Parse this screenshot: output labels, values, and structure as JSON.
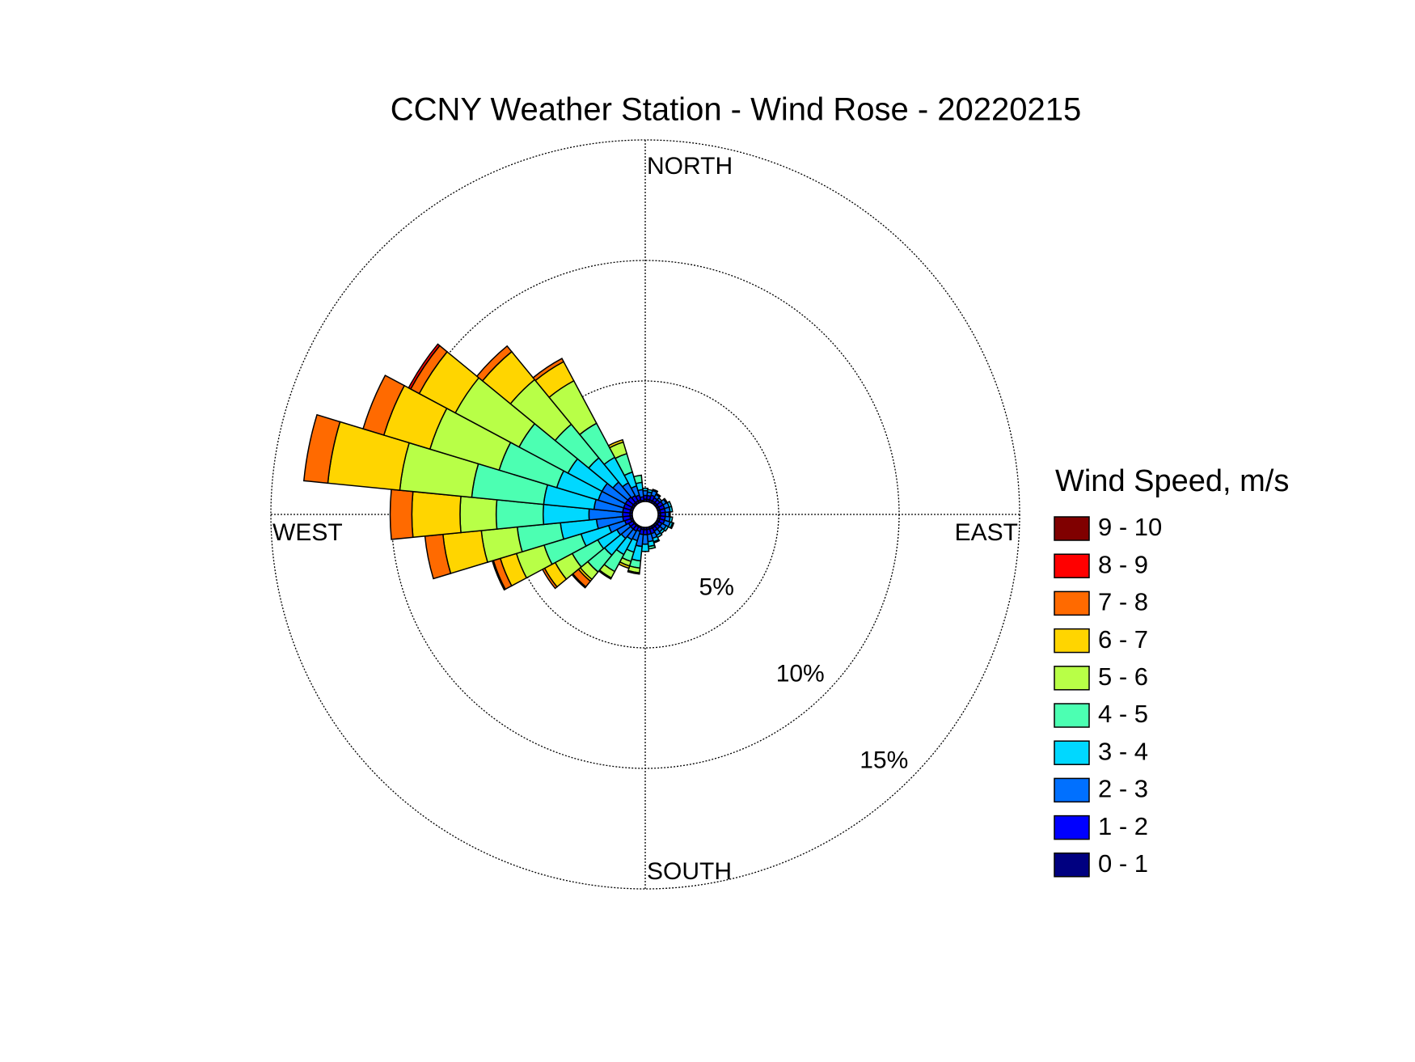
{
  "chart_data": {
    "type": "windrose",
    "title": "CCNY Weather Station - Wind Rose - 20220215",
    "legend_title": "Wind Speed, m/s",
    "direction_labels": [
      "NORTH",
      "EAST",
      "SOUTH",
      "WEST"
    ],
    "directions": [
      0,
      11.25,
      22.5,
      33.75,
      45,
      56.25,
      67.5,
      78.75,
      90,
      101.25,
      112.5,
      123.75,
      135,
      146.25,
      157.5,
      168.75,
      180,
      191.25,
      202.5,
      213.75,
      225,
      236.25,
      247.5,
      258.75,
      270,
      281.25,
      292.5,
      303.75,
      315,
      326.25,
      337.5,
      348.75
    ],
    "rlim": [
      0,
      15
    ],
    "rticks": [
      {
        "value": 5,
        "label": "5%"
      },
      {
        "value": 10,
        "label": "10%"
      },
      {
        "value": 15,
        "label": "15%"
      }
    ],
    "series": [
      {
        "name": "0 - 1",
        "color": "#000080",
        "values": [
          0.1,
          0.1,
          0.1,
          0.1,
          0.1,
          0.1,
          0.1,
          0.1,
          0.1,
          0.1,
          0.1,
          0.1,
          0.1,
          0.1,
          0.1,
          0.1,
          0.1,
          0.1,
          0.05,
          0.05,
          0.05,
          0.05,
          0.1,
          0.1,
          0.1,
          0.1,
          0.1,
          0.1,
          0.1,
          0.1,
          0.1,
          0.05
        ]
      },
      {
        "name": "1 - 2",
        "color": "#0000ff",
        "values": [
          0.15,
          0.15,
          0.2,
          0.15,
          0.15,
          0.2,
          0.2,
          0.2,
          0.2,
          0.2,
          0.2,
          0.15,
          0.15,
          0.15,
          0.2,
          0.2,
          0.2,
          0.2,
          0.15,
          0.2,
          0.2,
          0.2,
          0.25,
          0.3,
          0.3,
          0.3,
          0.3,
          0.3,
          0.3,
          0.25,
          0.2,
          0.15
        ]
      },
      {
        "name": "2 - 3",
        "color": "#0070ff",
        "values": [
          0.2,
          0.15,
          0.2,
          0.15,
          0.1,
          0.15,
          0.2,
          0.2,
          0.15,
          0.2,
          0.25,
          0.2,
          0.15,
          0.2,
          0.2,
          0.3,
          0.4,
          0.5,
          0.4,
          0.4,
          0.5,
          0.55,
          0.7,
          1.1,
          1.4,
          1.2,
          1.1,
          1.1,
          0.8,
          0.6,
          0.4,
          0.3
        ]
      },
      {
        "name": "3 - 4",
        "color": "#00d8ff",
        "values": [
          0.1,
          0.1,
          0.05,
          0.05,
          0,
          0.05,
          0.1,
          0.1,
          0.05,
          0.1,
          0.1,
          0.1,
          0.1,
          0.1,
          0.15,
          0.2,
          0.3,
          0.6,
          0.5,
          0.7,
          0.9,
          0.9,
          1.2,
          1.5,
          1.9,
          2.1,
          1.8,
          1.6,
          1.3,
          1.2,
          0.6,
          0.3
        ]
      },
      {
        "name": "4 - 5",
        "color": "#4cffb2",
        "values": [
          0,
          0,
          0,
          0,
          0,
          0,
          0,
          0,
          0,
          0,
          0.05,
          0,
          0,
          0,
          0.05,
          0.1,
          0,
          0.3,
          0.4,
          0.8,
          0.9,
          1.2,
          1.6,
          1.8,
          1.95,
          3.0,
          2.5,
          2.3,
          1.8,
          1.6,
          0.8,
          0.3
        ]
      },
      {
        "name": "5 - 6",
        "color": "#b8ff47",
        "values": [
          0,
          0,
          0,
          0,
          0,
          0,
          0,
          0,
          0,
          0,
          0,
          0,
          0,
          0,
          0,
          0,
          0,
          0.2,
          0.2,
          0.3,
          0.4,
          0.8,
          1.2,
          1.5,
          1.5,
          3.0,
          3.0,
          3.0,
          2.4,
          2.0,
          0.5,
          0
        ]
      },
      {
        "name": "6 - 7",
        "color": "#ffd500",
        "values": [
          0,
          0,
          0,
          0,
          0,
          0,
          0,
          0,
          0,
          0,
          0,
          0,
          0,
          0,
          0,
          0,
          0,
          0,
          0.1,
          0.05,
          0.1,
          0.5,
          0.7,
          1.6,
          2.0,
          3.0,
          2.0,
          1.7,
          1.5,
          0.9,
          0.1,
          0
        ]
      },
      {
        "name": "7 - 8",
        "color": "#ff6a00",
        "values": [
          0,
          0,
          0,
          0,
          0,
          0,
          0,
          0,
          0,
          0,
          0,
          0,
          0,
          0,
          0,
          0,
          0,
          0,
          0,
          0,
          0.3,
          0.1,
          0.3,
          0.75,
          0.9,
          1.0,
          0.9,
          0.4,
          0.3,
          0.15,
          0,
          0
        ]
      },
      {
        "name": "8 - 9",
        "color": "#ff0000",
        "values": [
          0,
          0,
          0,
          0,
          0,
          0,
          0,
          0,
          0,
          0,
          0,
          0,
          0,
          0,
          0,
          0,
          0,
          0.05,
          0,
          0,
          0.05,
          0,
          0.05,
          0,
          0,
          0,
          0,
          0.1,
          0,
          0,
          0,
          0
        ]
      },
      {
        "name": "9 - 10",
        "color": "#800000",
        "values": [
          0,
          0,
          0,
          0,
          0,
          0,
          0,
          0,
          0,
          0,
          0,
          0,
          0,
          0,
          0,
          0,
          0,
          0,
          0,
          0,
          0,
          0,
          0,
          0,
          0,
          0,
          0,
          0,
          0,
          0,
          0,
          0
        ]
      }
    ]
  }
}
